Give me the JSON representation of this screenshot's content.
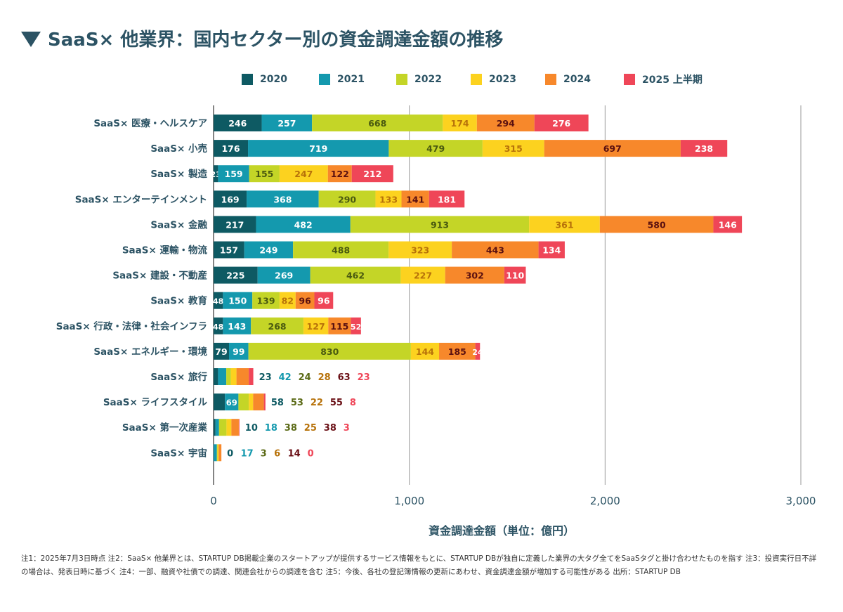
{
  "title": "SaaS× 他業界：国内セクター別の資金調達金額の推移",
  "footnote": "注1：2025年7月3日時点 注2：SaaS× 他業界とは、STARTUP DB掲載企業のスタートアップが提供するサービス情報をもとに、STARTUP DBが独自に定義した業界の大タグ全てをSaaSタグと掛け合わせたものを指す 注3：投資実行日不詳の場合は、発表日時に基づく 注4：一部、融資や社債での調達、関連会社からの調達を含む 注5：今後、各社の登記簿情報の更新にあわせ、資金調達金額が増加する可能性がある 出所：STARTUP DB",
  "colors": {
    "2020": "#0e5a63",
    "2021": "#1499ae",
    "2022": "#c4d527",
    "2023": "#fcd21f",
    "2024": "#f7882b",
    "2025": "#ef4658"
  },
  "chart_data": {
    "type": "bar",
    "orientation": "horizontal",
    "stacked": true,
    "xlabel": "資金調達金額（単位：億円）",
    "xlim": [
      0,
      3000
    ],
    "xticks": [
      "0",
      "1,000",
      "2,000",
      "3,000"
    ],
    "legend_position": "top",
    "grid": true,
    "categories": [
      "SaaS× 医療・ヘルスケア",
      "SaaS× 小売",
      "SaaS× 製造",
      "SaaS× エンターテインメント",
      "SaaS× 金融",
      "SaaS× 運輸・物流",
      "SaaS× 建設・不動産",
      "SaaS× 教育",
      "SaaS× 行政・法律・社会インフラ",
      "SaaS× エネルギー・環境",
      "SaaS× 旅行",
      "SaaS× ライフスタイル",
      "SaaS× 第一次産業",
      "SaaS× 宇宙"
    ],
    "series": [
      {
        "name": "2020",
        "values": [
          246,
          176,
          23,
          169,
          217,
          157,
          225,
          48,
          48,
          79,
          23,
          58,
          10,
          0
        ]
      },
      {
        "name": "2021",
        "values": [
          257,
          719,
          159,
          368,
          482,
          249,
          269,
          150,
          143,
          99,
          42,
          69,
          18,
          17
        ]
      },
      {
        "name": "2022",
        "values": [
          668,
          479,
          155,
          290,
          913,
          488,
          462,
          139,
          268,
          830,
          24,
          53,
          38,
          3
        ]
      },
      {
        "name": "2023",
        "values": [
          174,
          315,
          247,
          133,
          361,
          323,
          227,
          82,
          127,
          144,
          28,
          22,
          25,
          6
        ]
      },
      {
        "name": "2024",
        "values": [
          294,
          697,
          122,
          141,
          580,
          443,
          302,
          96,
          115,
          185,
          63,
          55,
          38,
          14
        ]
      },
      {
        "name": "2025 上半期",
        "values": [
          276,
          238,
          212,
          181,
          146,
          134,
          110,
          96,
          52,
          24,
          23,
          8,
          3,
          0
        ]
      }
    ]
  }
}
